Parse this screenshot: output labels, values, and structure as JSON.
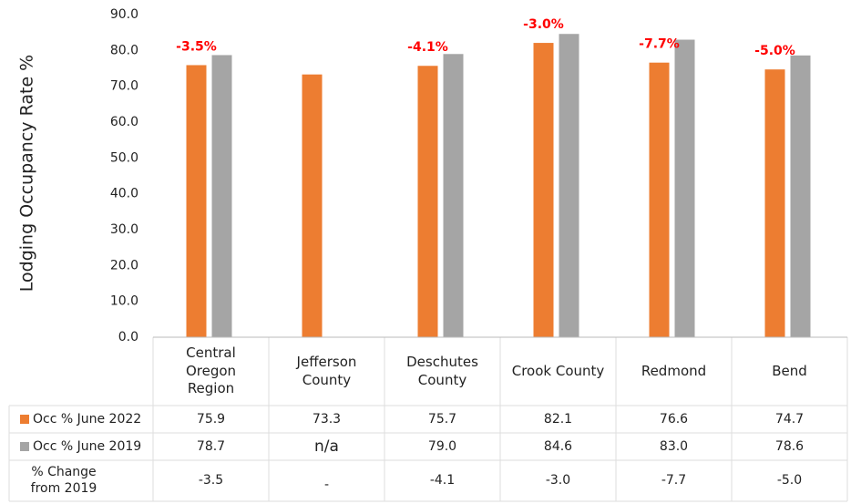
{
  "chart_data": {
    "type": "bar",
    "y_label": "Lodging Occupancy Rate %",
    "categories": [
      "Central\nOregon\nRegion",
      "Jefferson\nCounty",
      "Deschutes\nCounty",
      "Crook County",
      "Redmond",
      "Bend"
    ],
    "series": [
      {
        "name": "Occ % June 2022",
        "color": "#ED7D31",
        "values": [
          75.9,
          73.3,
          75.7,
          82.1,
          76.6,
          74.7
        ],
        "value_labels": [
          "75.9",
          "73.3",
          "75.7",
          "82.1",
          "76.6",
          "74.7"
        ]
      },
      {
        "name": "Occ % June 2019",
        "color": "#A5A5A5",
        "values": [
          78.7,
          null,
          79.0,
          84.6,
          83.0,
          78.6
        ],
        "value_labels": [
          "78.7",
          "n/a",
          "79.0",
          "84.6",
          "83.0",
          "78.6"
        ]
      }
    ],
    "change": {
      "name": "% Change\nfrom 2019",
      "values": [
        -3.5,
        null,
        -4.1,
        -3.0,
        -7.7,
        -5.0
      ],
      "value_labels": [
        "-3.5",
        "-",
        "-4.1",
        "-3.0",
        "-7.7",
        "-5.0"
      ],
      "annotation_labels": [
        "-3.5%",
        null,
        "-4.1%",
        "-3.0%",
        "-7.7%",
        "-5.0%"
      ],
      "annotation_color": "#FF0000"
    },
    "ylim": [
      0,
      90
    ],
    "yticks": [
      {
        "value": 0,
        "label": "0.0"
      },
      {
        "value": 10,
        "label": "10.0"
      },
      {
        "value": 20,
        "label": "20.0"
      },
      {
        "value": 30,
        "label": "30.0"
      },
      {
        "value": 40,
        "label": "40.0"
      },
      {
        "value": 50,
        "label": "50.0"
      },
      {
        "value": 60,
        "label": "60.0"
      },
      {
        "value": 70,
        "label": "70.0"
      },
      {
        "value": 80,
        "label": "80.0"
      },
      {
        "value": 90,
        "label": "90.0"
      }
    ],
    "grid": false
  }
}
